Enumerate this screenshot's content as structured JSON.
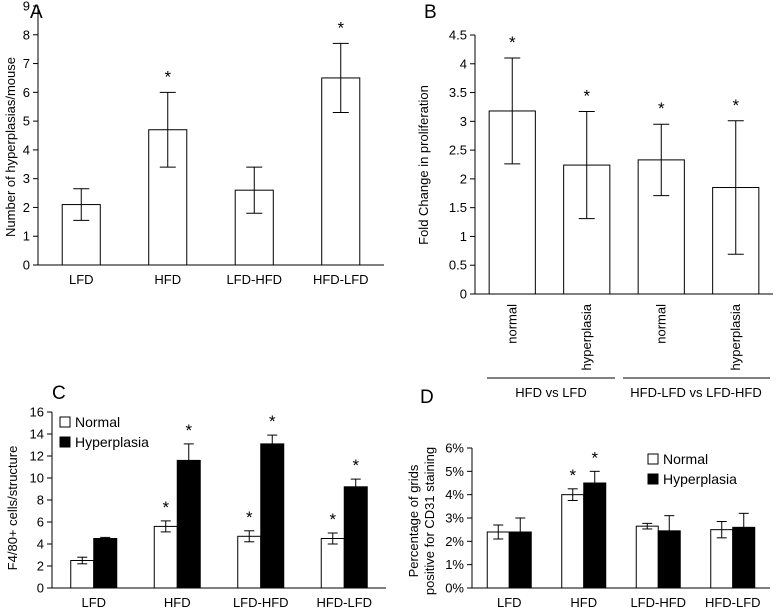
{
  "chart_data": [
    {
      "panel": "A",
      "type": "bar",
      "title": "",
      "xlabel": "",
      "ylabel": "Number of hyperplasias/mouse",
      "categories": [
        "LFD",
        "HFD",
        "LFD-HFD",
        "HFD-LFD"
      ],
      "values": [
        2.1,
        4.7,
        2.6,
        6.5
      ],
      "errors": [
        0.55,
        1.3,
        0.8,
        1.2
      ],
      "significant": [
        false,
        true,
        false,
        true
      ],
      "ylim": [
        0,
        9
      ],
      "yticks": [
        "0",
        "1",
        "2",
        "3",
        "4",
        "5",
        "6",
        "7",
        "8",
        "9"
      ],
      "significance_marker": "*"
    },
    {
      "panel": "B",
      "type": "bar",
      "title": "",
      "xlabel": "",
      "ylabel": "Fold Change in proliferation",
      "categories": [
        "normal",
        "hyperplasia",
        "normal",
        "hyperplasia"
      ],
      "values": [
        3.18,
        2.24,
        2.33,
        1.85
      ],
      "errors": [
        0.92,
        0.93,
        0.62,
        1.16
      ],
      "significant": [
        true,
        true,
        true,
        true
      ],
      "ylim": [
        0,
        4.5
      ],
      "yticks": [
        "0",
        "0.5",
        "1",
        "1.5",
        "2",
        "2.5",
        "3",
        "3.5",
        "4",
        "4.5"
      ],
      "groups": [
        "HFD vs LFD",
        "HFD-LFD vs LFD-HFD"
      ],
      "significance_marker": "*"
    },
    {
      "panel": "C",
      "type": "bar",
      "title": "",
      "xlabel": "",
      "ylabel": "F4/80+ cells/structure",
      "categories": [
        "LFD",
        "HFD",
        "LFD-HFD",
        "HFD-LFD"
      ],
      "series": [
        {
          "name": "Normal",
          "values": [
            2.5,
            5.6,
            4.7,
            4.5
          ],
          "errors": [
            0.3,
            0.5,
            0.5,
            0.5
          ],
          "significant": [
            false,
            true,
            true,
            true
          ]
        },
        {
          "name": "Hyperplasia",
          "values": [
            4.5,
            11.6,
            13.1,
            9.2
          ],
          "errors": [
            0.1,
            1.5,
            0.8,
            0.7
          ],
          "significant": [
            false,
            true,
            true,
            true
          ]
        }
      ],
      "ylim": [
        0,
        16
      ],
      "yticks": [
        "0",
        "2",
        "4",
        "6",
        "8",
        "10",
        "12",
        "14",
        "16"
      ],
      "legend": "top-left",
      "significance_marker": "*"
    },
    {
      "panel": "D",
      "type": "bar",
      "title": "",
      "xlabel": "",
      "ylabel_line1": "Percentage of grids",
      "ylabel_line2": "positive for CD31 staining",
      "categories": [
        "LFD",
        "HFD",
        "LFD-HFD",
        "HFD-LFD"
      ],
      "series": [
        {
          "name": "Normal",
          "values": [
            2.4,
            4.0,
            2.65,
            2.5
          ],
          "errors": [
            0.3,
            0.25,
            0.12,
            0.35
          ],
          "significant": [
            false,
            true,
            false,
            false
          ]
        },
        {
          "name": "Hyperplasia",
          "values": [
            2.4,
            4.5,
            2.45,
            2.6
          ],
          "errors": [
            0.6,
            0.5,
            0.65,
            0.6
          ],
          "significant": [
            false,
            true,
            false,
            false
          ]
        }
      ],
      "ylim": [
        0,
        6
      ],
      "yticks": [
        "0%",
        "1%",
        "2%",
        "3%",
        "4%",
        "5%",
        "6%"
      ],
      "legend": "top-right",
      "significance_marker": "*"
    }
  ],
  "colors": {
    "normal": "#ffffff",
    "hyperplasia": "#000000",
    "axis": "#000000"
  }
}
